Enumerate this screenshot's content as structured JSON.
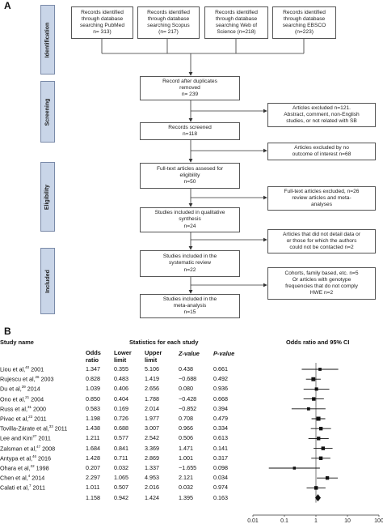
{
  "panel_a": {
    "label": "A",
    "phases": [
      "Identification",
      "Screening",
      "Eligibility",
      "Included"
    ],
    "boxes": {
      "pubmed": "Records identified\nthrough database\nsearching PubMed\nn= 313)",
      "scopus": "Records identified\nthrough database\nsearching Scopus\n(n= 217)",
      "wos": "Records identified\nthrough database\nsearching Web of\nScience (n=218)",
      "ebsco": "Records identified\nthrough database\nsearching EBSCO\n(n=223)",
      "after_dup": "Record after duplicates\nremoved\nn= 239",
      "screened": "Records screened\nn=118",
      "fulltext": "Full-text articles assesed for\neligibility\nn=50",
      "qualitative": "Studies included in qualitative\nsynthesis\nn=24",
      "systematic": "Studies included in the\nsystematic review\nn=22",
      "meta": "Studies included in the\nmeta-analysis\nn=15",
      "excl1": "Articles excluded n=121.\nAbstract, comment, non-English\nstudies, or not related with SB",
      "excl2": "Articles excluded by no\noutcome of interest n=68",
      "excl3": "Full-text articles excluded, n=26\nreview articles and meta-\nanalyses",
      "excl4": "Articles that did not detail data or\nor those for which the authors\ncould not be contacted n=2",
      "excl5": "Cohorts, family based, etc. n=5\nOr articles with genotype\nfrequencies that do not comply\nHWE n=2"
    }
  },
  "panel_b": {
    "label": "B",
    "header": {
      "study_name": "Study name",
      "stats_title": "Statistics for each study",
      "plot_title": "Odds ratio and 95% CI",
      "odds": "Odds\nratio",
      "lower": "Lower\nlimit",
      "upper": "Upper\nlimit",
      "z": "Z-value",
      "p": "P-value"
    },
    "rows": [
      {
        "name": "Liou et al,",
        "ref": "40",
        "year": " 2001",
        "or": "1.347",
        "lower": "0.355",
        "upper": "5.106",
        "z": "0.438",
        "p": "0.661"
      },
      {
        "name": "Rujescu et al,",
        "ref": "26",
        "year": " 2003",
        "or": "0.828",
        "lower": "0.483",
        "upper": "1.419",
        "z": "−0.688",
        "p": "0.492"
      },
      {
        "name": "Du et al,",
        "ref": "39",
        "year": " 2014",
        "or": "1.039",
        "lower": "0.406",
        "upper": "2.656",
        "z": "0.080",
        "p": "0.936"
      },
      {
        "name": "Ono et al,",
        "ref": "21",
        "year": " 2004",
        "or": "0.850",
        "lower": "0.404",
        "upper": "1.788",
        "z": "−0.428",
        "p": "0.668"
      },
      {
        "name": "Russ et al,",
        "ref": "31",
        "year": " 2000",
        "or": "0.583",
        "lower": "0.169",
        "upper": "2.014",
        "z": "−0.852",
        "p": "0.394"
      },
      {
        "name": "Pivac et al,",
        "ref": "23",
        "year": " 2011",
        "or": "1.198",
        "lower": "0.726",
        "upper": "1.977",
        "z": "0.708",
        "p": "0.479"
      },
      {
        "name": "Tovilla-Zárate et al,",
        "ref": "33",
        "year": " 2011",
        "or": "1.438",
        "lower": "0.688",
        "upper": "3.007",
        "z": "0.966",
        "p": "0.334"
      },
      {
        "name": "Lee and Kim",
        "ref": "27",
        "year": " 2011",
        "or": "1.211",
        "lower": "0.577",
        "upper": "2.542",
        "z": "0.506",
        "p": "0.613"
      },
      {
        "name": "Zalsman et al,",
        "ref": "47",
        "year": " 2008",
        "or": "1.684",
        "lower": "0.841",
        "upper": "3.369",
        "z": "1.471",
        "p": "0.141"
      },
      {
        "name": "Antypa et al,",
        "ref": "46",
        "year": " 2016",
        "or": "1.428",
        "lower": "0.711",
        "upper": "2.869",
        "z": "1.001",
        "p": "0.317"
      },
      {
        "name": "Ohara et al,",
        "ref": "22",
        "year": " 1998",
        "or": "0.207",
        "lower": "0.032",
        "upper": "1.337",
        "z": "−1.655",
        "p": "0.098"
      },
      {
        "name": "Chen et al,",
        "ref": "4",
        "year": " 2014",
        "or": "2.297",
        "lower": "1.065",
        "upper": "4.953",
        "z": "2.121",
        "p": "0.034"
      },
      {
        "name": "Calati et al,",
        "ref": "7",
        "year": " 2011",
        "or": "1.011",
        "lower": "0.507",
        "upper": "2.016",
        "z": "0.032",
        "p": "0.974"
      },
      {
        "name": "",
        "ref": "",
        "year": "",
        "or": "1.158",
        "lower": "0.942",
        "upper": "1.424",
        "z": "1.395",
        "p": "0.163"
      }
    ]
  },
  "chart_data": {
    "type": "scatter",
    "title": "Odds ratio and 95% CI",
    "scale": "log",
    "xlim": [
      0.01,
      100
    ],
    "ticks": [
      "0.01",
      "0.1",
      "1",
      "10",
      "100"
    ],
    "points": [
      {
        "or": 1.347,
        "lower": 0.355,
        "upper": 5.106
      },
      {
        "or": 0.828,
        "lower": 0.483,
        "upper": 1.419
      },
      {
        "or": 1.039,
        "lower": 0.406,
        "upper": 2.656
      },
      {
        "or": 0.85,
        "lower": 0.404,
        "upper": 1.788
      },
      {
        "or": 0.583,
        "lower": 0.169,
        "upper": 2.014
      },
      {
        "or": 1.198,
        "lower": 0.726,
        "upper": 1.977
      },
      {
        "or": 1.438,
        "lower": 0.688,
        "upper": 3.007
      },
      {
        "or": 1.211,
        "lower": 0.577,
        "upper": 2.542
      },
      {
        "or": 1.684,
        "lower": 0.841,
        "upper": 3.369
      },
      {
        "or": 1.428,
        "lower": 0.711,
        "upper": 2.869
      },
      {
        "or": 0.207,
        "lower": 0.032,
        "upper": 1.337
      },
      {
        "or": 2.297,
        "lower": 1.065,
        "upper": 4.953
      },
      {
        "or": 1.011,
        "lower": 0.507,
        "upper": 2.016
      }
    ],
    "pooled": {
      "or": 1.158,
      "lower": 0.942,
      "upper": 1.424
    }
  }
}
